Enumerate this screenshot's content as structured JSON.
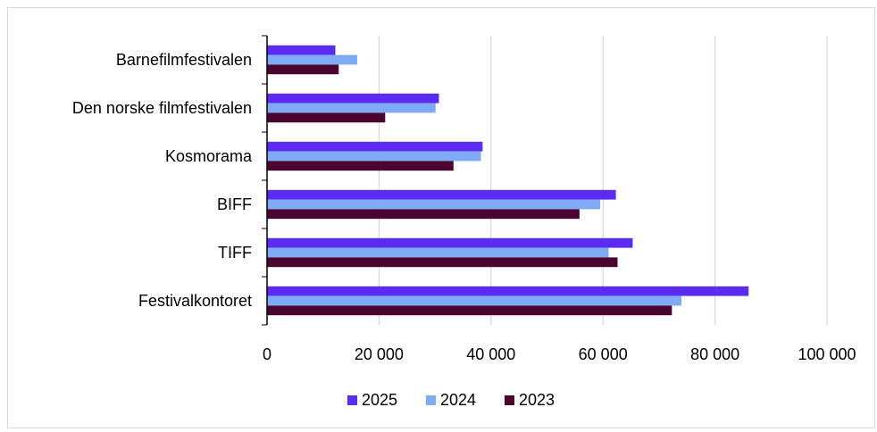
{
  "chart_data": {
    "type": "bar",
    "orientation": "horizontal",
    "title": "",
    "xlabel": "",
    "ylabel": "",
    "categories": [
      "Barnefilmfestivalen",
      "Den norske filmfestivalen",
      "Kosmorama",
      "BIFF",
      "TIFF",
      "Festivalkontoret"
    ],
    "series": [
      {
        "name": "2025",
        "color": "#5b2cf0",
        "values": [
          12200,
          30700,
          38500,
          62300,
          65300,
          86000
        ]
      },
      {
        "name": "2024",
        "color": "#7faaf5",
        "values": [
          16100,
          30100,
          38200,
          59500,
          61000,
          74000
        ]
      },
      {
        "name": "2023",
        "color": "#4a0530",
        "values": [
          12800,
          21100,
          33300,
          55800,
          62600,
          72300
        ]
      }
    ],
    "xlim": [
      0,
      100000
    ],
    "x_ticks": [
      0,
      20000,
      40000,
      60000,
      80000,
      100000
    ],
    "x_tick_labels": [
      "0",
      "20 000",
      "40 000",
      "60 000",
      "80 000",
      "100 000"
    ],
    "grid": "vertical",
    "legend_position": "bottom"
  }
}
